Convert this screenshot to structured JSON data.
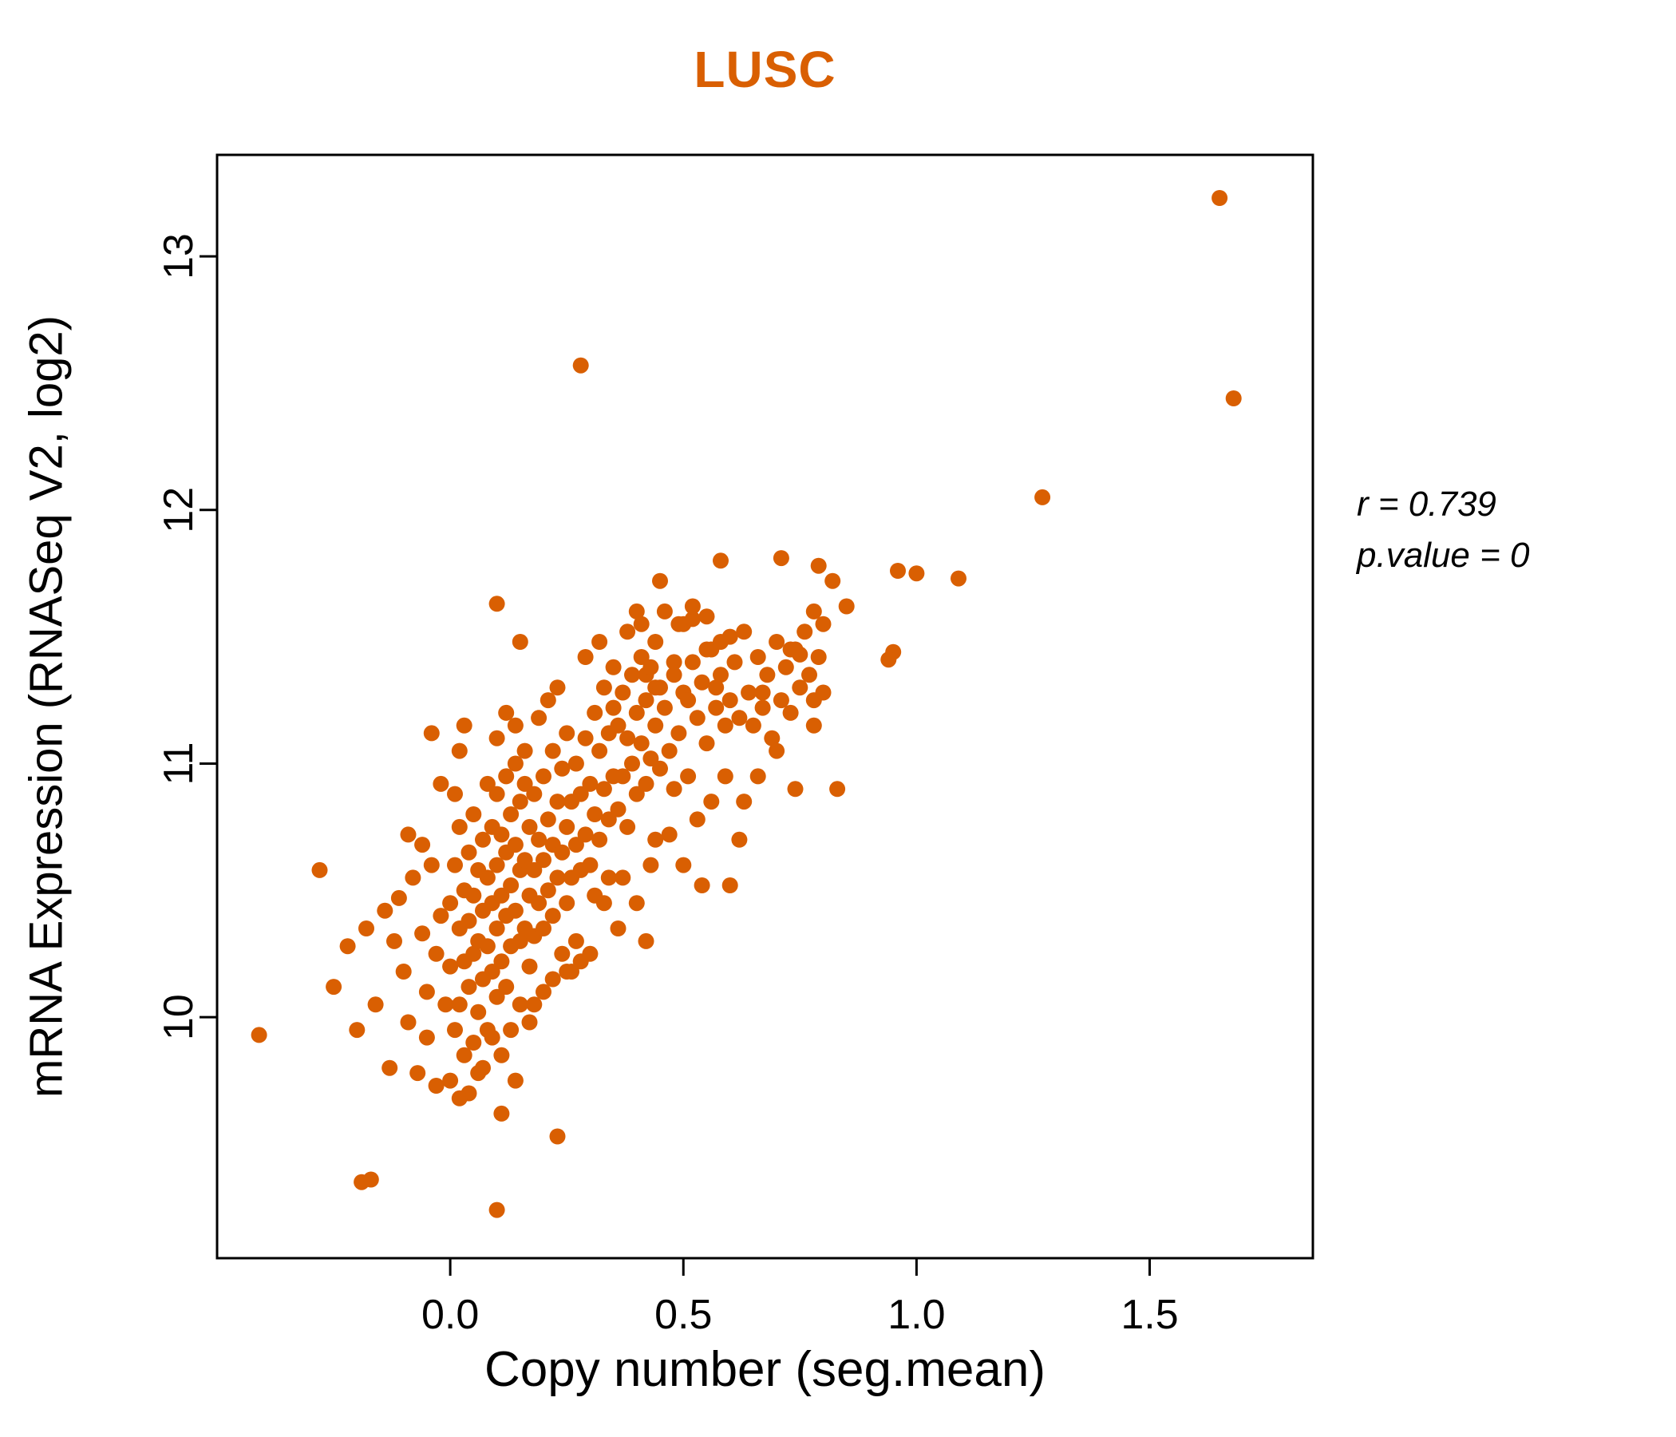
{
  "title": "LUSC",
  "annotation": {
    "line1": "r = 0.739",
    "line2": "p.value = 0"
  },
  "chart_data": {
    "type": "scatter",
    "title": "LUSC",
    "xlabel": "Copy number (seg.mean)",
    "ylabel": "mRNA Expression (RNASeq V2, log2)",
    "xlim": [
      -0.5,
      1.85
    ],
    "ylim": [
      9.05,
      13.4
    ],
    "x_ticks": [
      0.0,
      0.5,
      1.0,
      1.5
    ],
    "x_tick_labels": [
      "0.0",
      "0.5",
      "1.0",
      "1.5"
    ],
    "y_ticks": [
      10,
      11,
      12,
      13
    ],
    "y_tick_labels": [
      "10",
      "11",
      "12",
      "13"
    ],
    "grid": false,
    "legend": "none",
    "point_color": "#D95F02",
    "title_color": "#D95F02",
    "stats": {
      "r": 0.739,
      "p_value": 0
    },
    "points": [
      [
        1.65,
        13.23
      ],
      [
        1.68,
        12.44
      ],
      [
        1.27,
        12.05
      ],
      [
        0.28,
        12.57
      ],
      [
        -0.41,
        9.93
      ],
      [
        -0.28,
        10.58
      ],
      [
        -0.25,
        10.12
      ],
      [
        -0.22,
        10.28
      ],
      [
        -0.2,
        9.95
      ],
      [
        -0.18,
        10.35
      ],
      [
        -0.19,
        9.35
      ],
      [
        -0.17,
        9.36
      ],
      [
        0.1,
        9.24
      ],
      [
        0.23,
        9.53
      ],
      [
        -0.16,
        10.05
      ],
      [
        0.96,
        11.76
      ],
      [
        0.95,
        11.44
      ],
      [
        0.94,
        11.41
      ],
      [
        1.0,
        11.75
      ],
      [
        1.09,
        11.73
      ],
      [
        0.85,
        11.62
      ],
      [
        0.58,
        11.8
      ],
      [
        0.71,
        11.81
      ],
      [
        0.79,
        11.78
      ],
      [
        0.82,
        11.72
      ],
      [
        0.8,
        11.55
      ],
      [
        0.83,
        10.9
      ],
      [
        0.67,
        11.28
      ],
      [
        0.73,
        11.45
      ],
      [
        0.75,
        11.43
      ],
      [
        0.78,
        11.25
      ],
      [
        0.6,
        10.52
      ],
      [
        0.62,
        10.7
      ],
      [
        0.45,
        11.72
      ],
      [
        0.5,
        11.55
      ],
      [
        0.52,
        11.57
      ],
      [
        0.55,
        11.45
      ],
      [
        0.48,
        11.4
      ],
      [
        0.44,
        11.3
      ],
      [
        0.1,
        11.63
      ],
      [
        0.15,
        11.48
      ],
      [
        0.4,
        11.6
      ],
      [
        0.42,
        11.35
      ],
      [
        -0.14,
        10.42
      ],
      [
        -0.12,
        10.3
      ],
      [
        -0.1,
        10.18
      ],
      [
        -0.09,
        9.98
      ],
      [
        -0.13,
        9.8
      ],
      [
        -0.08,
        10.55
      ],
      [
        -0.06,
        10.33
      ],
      [
        -0.05,
        10.1
      ],
      [
        -0.11,
        10.47
      ],
      [
        -0.07,
        9.78
      ],
      [
        -0.04,
        10.6
      ],
      [
        -0.03,
        10.25
      ],
      [
        -0.05,
        9.92
      ],
      [
        -0.02,
        10.4
      ],
      [
        -0.06,
        10.68
      ],
      [
        -0.03,
        9.73
      ],
      [
        -0.09,
        10.72
      ],
      [
        -0.02,
        10.92
      ],
      [
        -0.04,
        11.12
      ],
      [
        -0.01,
        10.05
      ],
      [
        0.0,
        10.45
      ],
      [
        0.0,
        10.2
      ],
      [
        0.01,
        10.6
      ],
      [
        0.01,
        9.95
      ],
      [
        0.02,
        10.35
      ],
      [
        0.02,
        10.75
      ],
      [
        0.02,
        10.05
      ],
      [
        0.03,
        10.5
      ],
      [
        0.03,
        10.22
      ],
      [
        0.03,
        9.85
      ],
      [
        0.04,
        10.65
      ],
      [
        0.04,
        10.38
      ],
      [
        0.04,
        10.12
      ],
      [
        0.05,
        10.8
      ],
      [
        0.05,
        10.48
      ],
      [
        0.05,
        10.25
      ],
      [
        0.05,
        9.9
      ],
      [
        0.06,
        10.58
      ],
      [
        0.06,
        10.3
      ],
      [
        0.06,
        10.02
      ],
      [
        0.01,
        10.88
      ],
      [
        0.02,
        11.05
      ],
      [
        0.03,
        11.15
      ],
      [
        0.07,
        10.7
      ],
      [
        0.07,
        10.42
      ],
      [
        0.07,
        10.15
      ],
      [
        0.07,
        9.8
      ],
      [
        0.08,
        10.92
      ],
      [
        0.08,
        10.55
      ],
      [
        0.08,
        10.28
      ],
      [
        0.0,
        9.75
      ],
      [
        0.04,
        9.7
      ],
      [
        0.06,
        9.78
      ],
      [
        0.08,
        9.95
      ],
      [
        0.02,
        9.68
      ],
      [
        0.09,
        10.75
      ],
      [
        0.09,
        10.45
      ],
      [
        0.09,
        10.18
      ],
      [
        0.1,
        10.88
      ],
      [
        0.1,
        10.6
      ],
      [
        0.1,
        10.35
      ],
      [
        0.1,
        10.08
      ],
      [
        0.11,
        10.72
      ],
      [
        0.11,
        10.48
      ],
      [
        0.11,
        10.22
      ],
      [
        0.12,
        10.95
      ],
      [
        0.12,
        10.65
      ],
      [
        0.12,
        10.4
      ],
      [
        0.12,
        10.12
      ],
      [
        0.13,
        10.8
      ],
      [
        0.13,
        10.52
      ],
      [
        0.13,
        10.28
      ],
      [
        0.14,
        11.0
      ],
      [
        0.14,
        10.68
      ],
      [
        0.14,
        10.42
      ],
      [
        0.15,
        10.85
      ],
      [
        0.15,
        10.58
      ],
      [
        0.15,
        10.3
      ],
      [
        0.16,
        10.92
      ],
      [
        0.16,
        10.62
      ],
      [
        0.16,
        10.35
      ],
      [
        0.09,
        9.92
      ],
      [
        0.11,
        9.85
      ],
      [
        0.13,
        9.95
      ],
      [
        0.15,
        10.05
      ],
      [
        0.1,
        11.1
      ],
      [
        0.12,
        11.2
      ],
      [
        0.14,
        11.15
      ],
      [
        0.16,
        11.05
      ],
      [
        0.11,
        9.62
      ],
      [
        0.14,
        9.75
      ],
      [
        0.17,
        10.75
      ],
      [
        0.17,
        10.48
      ],
      [
        0.17,
        10.2
      ],
      [
        0.18,
        10.88
      ],
      [
        0.18,
        10.58
      ],
      [
        0.18,
        10.32
      ],
      [
        0.19,
        10.7
      ],
      [
        0.19,
        10.45
      ],
      [
        0.2,
        10.95
      ],
      [
        0.2,
        10.62
      ],
      [
        0.2,
        10.35
      ],
      [
        0.21,
        10.78
      ],
      [
        0.21,
        10.5
      ],
      [
        0.22,
        11.05
      ],
      [
        0.22,
        10.68
      ],
      [
        0.22,
        10.4
      ],
      [
        0.23,
        10.85
      ],
      [
        0.23,
        10.55
      ],
      [
        0.24,
        10.98
      ],
      [
        0.24,
        10.65
      ],
      [
        0.25,
        11.12
      ],
      [
        0.25,
        10.75
      ],
      [
        0.25,
        10.45
      ],
      [
        0.18,
        10.05
      ],
      [
        0.2,
        10.1
      ],
      [
        0.22,
        10.15
      ],
      [
        0.24,
        10.25
      ],
      [
        0.19,
        11.18
      ],
      [
        0.21,
        11.25
      ],
      [
        0.23,
        11.3
      ],
      [
        0.17,
        9.98
      ],
      [
        0.25,
        10.18
      ],
      [
        0.26,
        10.85
      ],
      [
        0.26,
        10.55
      ],
      [
        0.27,
        11.0
      ],
      [
        0.27,
        10.68
      ],
      [
        0.28,
        10.88
      ],
      [
        0.28,
        10.58
      ],
      [
        0.29,
        11.1
      ],
      [
        0.29,
        10.72
      ],
      [
        0.3,
        10.92
      ],
      [
        0.3,
        10.6
      ],
      [
        0.31,
        11.2
      ],
      [
        0.31,
        10.8
      ],
      [
        0.32,
        11.05
      ],
      [
        0.32,
        10.7
      ],
      [
        0.33,
        11.3
      ],
      [
        0.33,
        10.9
      ],
      [
        0.34,
        11.12
      ],
      [
        0.34,
        10.78
      ],
      [
        0.35,
        11.38
      ],
      [
        0.35,
        10.95
      ],
      [
        0.27,
        10.3
      ],
      [
        0.3,
        10.25
      ],
      [
        0.33,
        10.45
      ],
      [
        0.29,
        11.42
      ],
      [
        0.32,
        11.48
      ],
      [
        0.35,
        11.22
      ],
      [
        0.26,
        10.18
      ],
      [
        0.31,
        10.48
      ],
      [
        0.34,
        10.55
      ],
      [
        0.28,
        10.22
      ],
      [
        0.36,
        11.15
      ],
      [
        0.36,
        10.82
      ],
      [
        0.37,
        11.28
      ],
      [
        0.37,
        10.95
      ],
      [
        0.38,
        11.1
      ],
      [
        0.38,
        10.75
      ],
      [
        0.39,
        11.35
      ],
      [
        0.39,
        11.0
      ],
      [
        0.4,
        11.2
      ],
      [
        0.4,
        10.88
      ],
      [
        0.41,
        11.42
      ],
      [
        0.41,
        11.08
      ],
      [
        0.42,
        11.25
      ],
      [
        0.42,
        10.92
      ],
      [
        0.43,
        11.38
      ],
      [
        0.43,
        11.02
      ],
      [
        0.44,
        11.15
      ],
      [
        0.45,
        11.3
      ],
      [
        0.45,
        10.98
      ],
      [
        0.44,
        10.7
      ],
      [
        0.37,
        10.55
      ],
      [
        0.4,
        10.45
      ],
      [
        0.43,
        10.6
      ],
      [
        0.36,
        10.35
      ],
      [
        0.42,
        10.3
      ],
      [
        0.38,
        11.52
      ],
      [
        0.41,
        11.55
      ],
      [
        0.44,
        11.48
      ],
      [
        0.46,
        11.22
      ],
      [
        0.47,
        11.05
      ],
      [
        0.48,
        11.35
      ],
      [
        0.49,
        11.12
      ],
      [
        0.5,
        11.28
      ],
      [
        0.51,
        10.95
      ],
      [
        0.52,
        11.4
      ],
      [
        0.53,
        11.18
      ],
      [
        0.54,
        11.32
      ],
      [
        0.55,
        11.08
      ],
      [
        0.56,
        11.45
      ],
      [
        0.57,
        11.22
      ],
      [
        0.58,
        11.35
      ],
      [
        0.59,
        11.15
      ],
      [
        0.6,
        11.5
      ],
      [
        0.47,
        10.72
      ],
      [
        0.5,
        10.6
      ],
      [
        0.53,
        10.78
      ],
      [
        0.56,
        10.85
      ],
      [
        0.59,
        10.95
      ],
      [
        0.46,
        11.6
      ],
      [
        0.49,
        11.55
      ],
      [
        0.52,
        11.62
      ],
      [
        0.55,
        11.58
      ],
      [
        0.58,
        11.48
      ],
      [
        0.48,
        10.9
      ],
      [
        0.51,
        11.25
      ],
      [
        0.54,
        10.52
      ],
      [
        0.57,
        11.3
      ],
      [
        0.6,
        11.25
      ],
      [
        0.61,
        11.4
      ],
      [
        0.62,
        11.18
      ],
      [
        0.63,
        11.52
      ],
      [
        0.64,
        11.28
      ],
      [
        0.65,
        11.15
      ],
      [
        0.66,
        11.42
      ],
      [
        0.67,
        11.22
      ],
      [
        0.68,
        11.35
      ],
      [
        0.69,
        11.1
      ],
      [
        0.7,
        11.48
      ],
      [
        0.71,
        11.25
      ],
      [
        0.72,
        11.38
      ],
      [
        0.73,
        11.2
      ],
      [
        0.74,
        11.45
      ],
      [
        0.75,
        11.3
      ],
      [
        0.76,
        11.52
      ],
      [
        0.77,
        11.35
      ],
      [
        0.78,
        11.15
      ],
      [
        0.79,
        11.42
      ],
      [
        0.8,
        11.28
      ],
      [
        0.63,
        10.85
      ],
      [
        0.66,
        10.95
      ],
      [
        0.7,
        11.05
      ],
      [
        0.74,
        10.9
      ],
      [
        0.78,
        11.6
      ]
    ]
  }
}
